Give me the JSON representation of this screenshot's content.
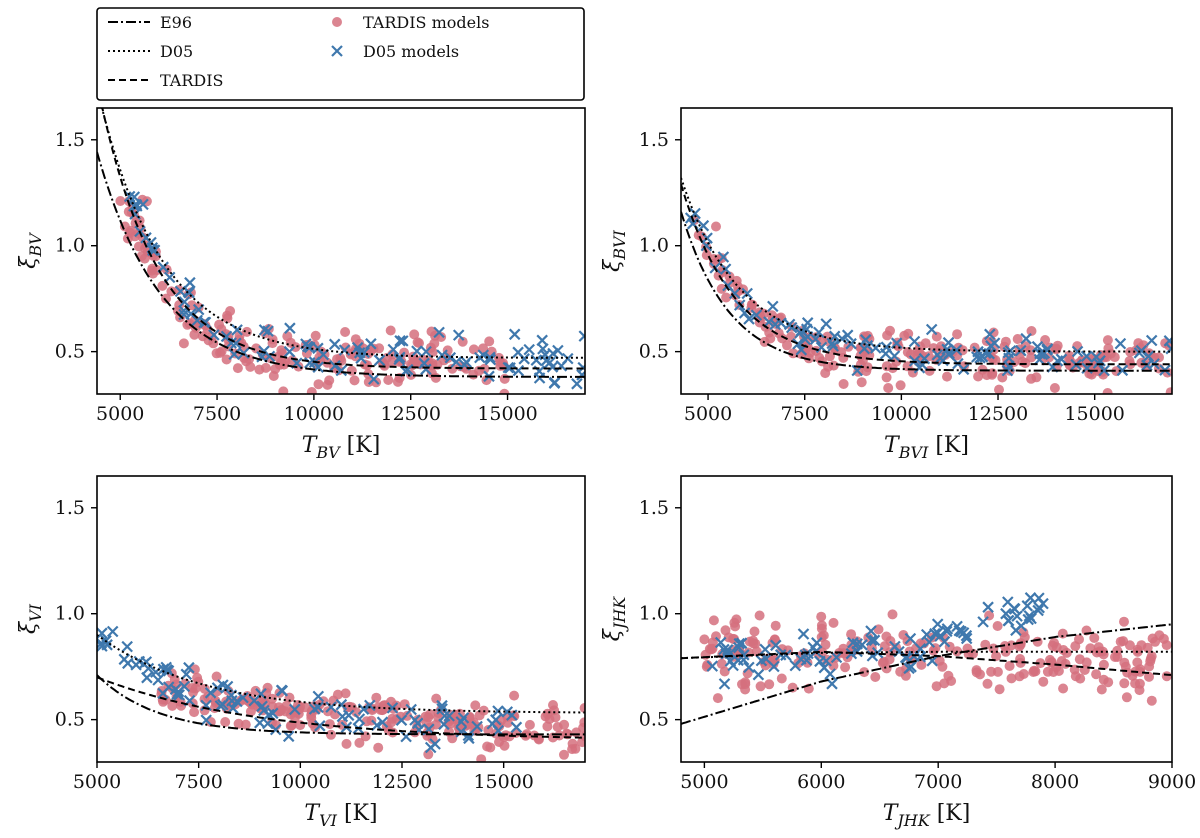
{
  "legend": {
    "entries": [
      {
        "label": "E96",
        "kind": "line",
        "style": "dashdot"
      },
      {
        "label": "D05",
        "kind": "line",
        "style": "dotted"
      },
      {
        "label": "TARDIS",
        "kind": "line",
        "style": "dashed"
      },
      {
        "label": "TARDIS models",
        "kind": "marker",
        "marker": "circle",
        "color": "#d5707e"
      },
      {
        "label": "D05 models",
        "kind": "marker",
        "marker": "x",
        "color": "#3f78ad"
      }
    ]
  },
  "colors": {
    "tardis_models": "#d5707e",
    "d05_models": "#3f78ad",
    "lines": "#000000"
  },
  "chart_data": [
    {
      "id": "bv",
      "type": "scatter",
      "xlabel": "T_BV [K]",
      "ylabel": "ξ_BV",
      "xlabel_parts": {
        "sym": "T",
        "sub": "BV",
        "unit": " [K]"
      },
      "ylabel_parts": {
        "sym": "ξ",
        "sub": "BV"
      },
      "xlim": [
        4400,
        17000
      ],
      "ylim": [
        0.3,
        1.65
      ],
      "xticks": [
        5000,
        7500,
        10000,
        12500,
        15000
      ],
      "yticks": [
        0.5,
        1.0,
        1.5
      ],
      "curves": {
        "E96": {
          "a0": 0.38,
          "a1": 1.0,
          "T0": 4500,
          "tau": 1650
        },
        "D05": {
          "a0": 0.47,
          "a1": 1.13,
          "T0": 4600,
          "tau": 1650
        },
        "TARDIS": {
          "a0": 0.42,
          "a1": 1.18,
          "T0": 4600,
          "tau": 1500
        }
      },
      "tardis_models": {
        "a0": 0.44,
        "a1": 1.15,
        "T0": 4500,
        "tau": 1500,
        "xmin": 5000,
        "xmax": 15000,
        "count": 210,
        "scatter": 0.07,
        "seed": 11
      },
      "d05_models": {
        "a0": 0.46,
        "a1": 1.05,
        "T0": 4800,
        "tau": 1550,
        "xmin": 4900,
        "xmax": 17000,
        "count": 110,
        "scatter": 0.05,
        "seed": 23
      }
    },
    {
      "id": "bvi",
      "type": "scatter",
      "xlabel": "T_BVI [K]",
      "ylabel": "ξ_BVI",
      "xlabel_parts": {
        "sym": "T",
        "sub": "BVI",
        "unit": " [K]"
      },
      "ylabel_parts": {
        "sym": "ξ",
        "sub": "BVI"
      },
      "xlim": [
        4300,
        17000
      ],
      "ylim": [
        0.3,
        1.65
      ],
      "xticks": [
        5000,
        7500,
        10000,
        12500,
        15000
      ],
      "yticks": [
        0.5,
        1.0,
        1.5
      ],
      "curves": {
        "E96": {
          "a0": 0.41,
          "a1": 0.75,
          "T0": 4300,
          "tau": 1250
        },
        "D05": {
          "a0": 0.5,
          "a1": 0.82,
          "T0": 4300,
          "tau": 1500
        },
        "TARDIS": {
          "a0": 0.44,
          "a1": 0.85,
          "T0": 4300,
          "tau": 1400
        }
      },
      "tardis_models": {
        "a0": 0.45,
        "a1": 0.8,
        "T0": 4400,
        "tau": 1450,
        "xmin": 4500,
        "xmax": 17000,
        "count": 230,
        "scatter": 0.06,
        "seed": 37
      },
      "d05_models": {
        "a0": 0.48,
        "a1": 0.78,
        "T0": 4400,
        "tau": 1450,
        "xmin": 4400,
        "xmax": 17000,
        "count": 110,
        "scatter": 0.045,
        "seed": 41
      }
    },
    {
      "id": "vi",
      "type": "scatter",
      "xlabel": "T_VI [K]",
      "ylabel": "ξ_VI",
      "xlabel_parts": {
        "sym": "T",
        "sub": "VI",
        "unit": " [K]"
      },
      "ylabel_parts": {
        "sym": "ξ",
        "sub": "VI"
      },
      "xlim": [
        5000,
        17000
      ],
      "ylim": [
        0.3,
        1.65
      ],
      "xticks": [
        5000,
        7500,
        10000,
        12500,
        15000
      ],
      "yticks": [
        0.5,
        1.0,
        1.5
      ],
      "curves": {
        "E96": {
          "a0": 0.43,
          "a1": 0.28,
          "T0": 5000,
          "tau": 1500
        },
        "D05": {
          "a0": 0.53,
          "a1": 0.37,
          "T0": 5000,
          "tau": 2600
        },
        "TARDIS": {
          "a0": 0.4,
          "a1": 0.3,
          "T0": 5000,
          "tau": 4000
        }
      },
      "tardis_models": {
        "a0": 0.43,
        "a1": 0.32,
        "T0": 5000,
        "tau": 4500,
        "xmin": 6500,
        "xmax": 17000,
        "count": 230,
        "scatter": 0.055,
        "seed": 53
      },
      "d05_models": {
        "a0": 0.48,
        "a1": 0.4,
        "T0": 5000,
        "tau": 2600,
        "xmin": 5100,
        "xmax": 15500,
        "count": 100,
        "scatter": 0.05,
        "seed": 59
      }
    },
    {
      "id": "jhk",
      "type": "scatter",
      "xlabel": "T_JHK [K]",
      "ylabel": "ξ_JHK",
      "xlabel_parts": {
        "sym": "T",
        "sub": "JHK",
        "unit": " [K]"
      },
      "ylabel_parts": {
        "sym": "ξ",
        "sub": "JHK"
      },
      "xlim": [
        4800,
        9000
      ],
      "ylim": [
        0.3,
        1.65
      ],
      "xticks": [
        5000,
        6000,
        7000,
        8000,
        9000
      ],
      "yticks": [
        0.5,
        1.0,
        1.5
      ],
      "curves": {
        "E96": {
          "linear": true,
          "pts": [
            [
              4800,
              0.48
            ],
            [
              6000,
              0.68
            ],
            [
              7000,
              0.8
            ],
            [
              8000,
              0.89
            ],
            [
              9000,
              0.95
            ]
          ]
        },
        "D05": {
          "linear": true,
          "pts": [
            [
              4800,
              0.79
            ],
            [
              6000,
              0.815
            ],
            [
              7000,
              0.82
            ],
            [
              8000,
              0.82
            ],
            [
              9000,
              0.82
            ]
          ]
        },
        "TARDIS": {
          "linear": true,
          "pts": [
            [
              4800,
              0.79
            ],
            [
              6000,
              0.82
            ],
            [
              7000,
              0.8
            ],
            [
              8000,
              0.76
            ],
            [
              9000,
              0.71
            ]
          ]
        }
      },
      "tardis_models": {
        "linear": true,
        "pts": [
          [
            5000,
            0.82
          ],
          [
            6000,
            0.82
          ],
          [
            7000,
            0.8
          ],
          [
            8000,
            0.78
          ],
          [
            9000,
            0.76
          ]
        ],
        "xmin": 5000,
        "xmax": 9000,
        "count": 230,
        "scatter": 0.075,
        "seed": 67
      },
      "d05_models": {
        "linear": true,
        "pts": [
          [
            5000,
            0.8
          ],
          [
            6000,
            0.79
          ],
          [
            6800,
            0.84
          ],
          [
            7300,
            0.95
          ],
          [
            7900,
            1.02
          ]
        ],
        "xmin": 5000,
        "xmax": 7950,
        "count": 95,
        "scatter": 0.05,
        "seed": 71
      }
    }
  ]
}
